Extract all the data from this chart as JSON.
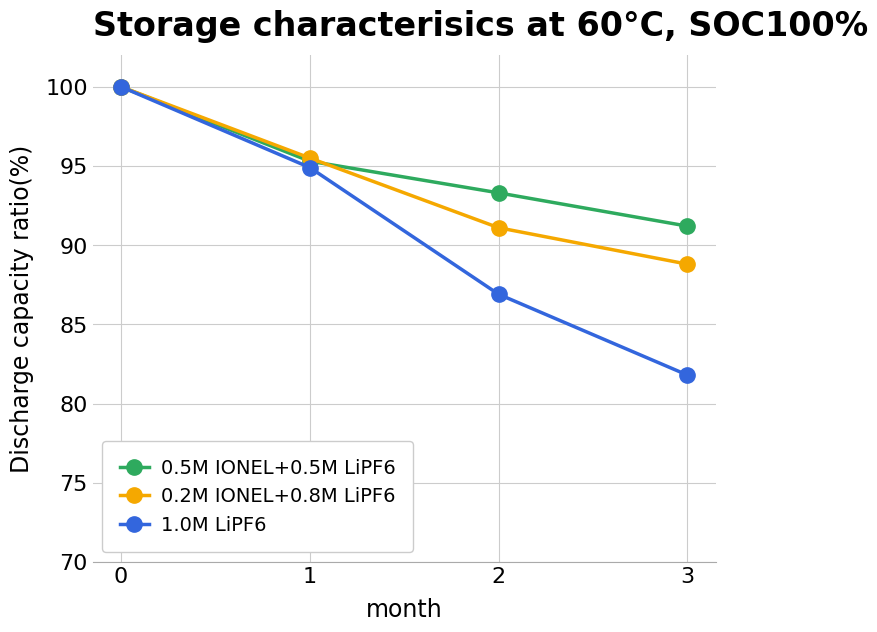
{
  "title": "Storage characterisics at 60°C, SOC100%",
  "xlabel": "month",
  "ylabel": "Discharge capacity ratio(%)",
  "x": [
    0,
    1,
    2,
    3
  ],
  "series": [
    {
      "label": "0.5M IONEL+0.5M LiPF6",
      "color": "#2eaa5e",
      "values": [
        100,
        95.3,
        93.3,
        91.2
      ]
    },
    {
      "label": "0.2M IONEL+0.8M LiPF6",
      "color": "#f5a800",
      "values": [
        100,
        95.5,
        91.1,
        88.8
      ]
    },
    {
      "label": "1.0M LiPF6",
      "color": "#3366dd",
      "values": [
        100,
        94.9,
        86.9,
        81.8
      ]
    }
  ],
  "ylim": [
    70,
    102
  ],
  "yticks": [
    70,
    75,
    80,
    85,
    90,
    95,
    100
  ],
  "xticks": [
    0,
    1,
    2,
    3
  ],
  "grid_color": "#cccccc",
  "background_color": "#ffffff",
  "title_fontsize": 24,
  "label_fontsize": 17,
  "tick_fontsize": 16,
  "legend_fontsize": 14,
  "marker_size": 11,
  "line_width": 2.5
}
